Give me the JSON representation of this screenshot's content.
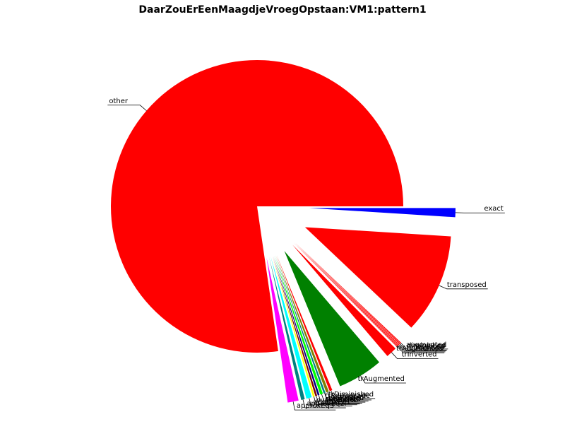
{
  "chart_data": {
    "type": "pie",
    "title": "DaarZouErEenMaagdjeVroegOpstaan:VM1:pattern1",
    "start_angle_deg": 0,
    "direction": "clockwise",
    "slices": [
      {
        "label": "exact",
        "value": 1.0,
        "color": "#0000ff",
        "explode": true
      },
      {
        "label": "transposed",
        "value": 11.0,
        "color": "#ff0000",
        "explode": true
      },
      {
        "label": "augmented",
        "value": 0.1,
        "color": "#ff0000",
        "explode": true
      },
      {
        "label": "diminished",
        "value": 0.1,
        "color": "#ff0000",
        "explode": true
      },
      {
        "label": "inverted",
        "value": 0.1,
        "color": "#ff0000",
        "explode": true
      },
      {
        "label": "retrograde",
        "value": 0.1,
        "color": "#ff0000",
        "explode": true
      },
      {
        "label": "trAugmented",
        "value": 0.1,
        "color": "#ff0000",
        "explode": true
      },
      {
        "label": "trInverted",
        "value": 1.2,
        "color": "#ff0000",
        "explode": true
      },
      {
        "label": "trAugmented",
        "value": 5.0,
        "color": "#008000",
        "explode": true
      },
      {
        "label": "trDiminished",
        "value": 0.3,
        "color": "#ff0000",
        "explode": true
      },
      {
        "label": "trRetrograde",
        "value": 0.3,
        "color": "#808000",
        "explode": true
      },
      {
        "label": "irregular",
        "value": 0.2,
        "color": "#008080",
        "explode": true
      },
      {
        "label": "prolonged",
        "value": 0.3,
        "color": "#00ff00",
        "explode": true
      },
      {
        "label": "shortened",
        "value": 0.2,
        "color": "#000080",
        "explode": true
      },
      {
        "label": "extended",
        "value": 0.2,
        "color": "#800000",
        "explode": true
      },
      {
        "label": "overloaded",
        "value": 0.2,
        "color": "#ffff00",
        "explode": true
      },
      {
        "label": "approxEq1",
        "value": 0.6,
        "color": "#00ffff",
        "explode": true
      },
      {
        "label": "approxEq2",
        "value": 0.4,
        "color": "#008080",
        "explode": true
      },
      {
        "label": "approxEq3",
        "value": 1.2,
        "color": "#ff00ff",
        "explode": true
      },
      {
        "label": "other",
        "value": 77.0,
        "color": "#ff0000",
        "explode": false
      }
    ]
  }
}
